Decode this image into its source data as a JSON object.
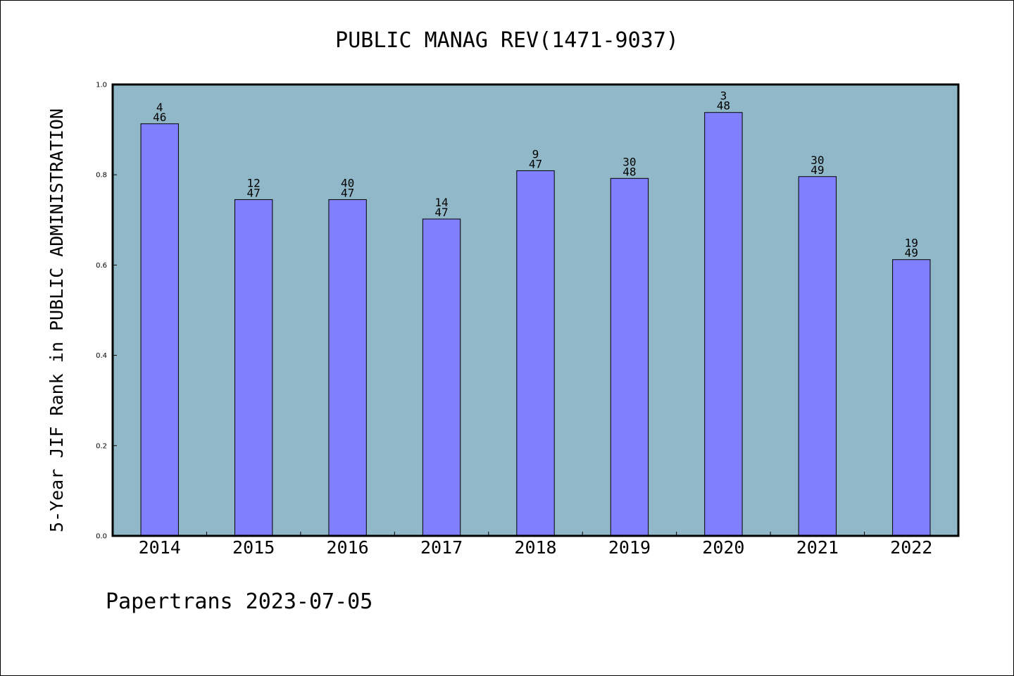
{
  "chart_data": {
    "type": "bar",
    "title": "PUBLIC MANAG REV(1471-9037)",
    "xlabel": "",
    "ylabel": "5-Year JIF Rank in PUBLIC ADMINISTRATION",
    "categories": [
      "2014",
      "2015",
      "2016",
      "2017",
      "2018",
      "2019",
      "2020",
      "2021",
      "2022"
    ],
    "values": [
      0.913,
      0.745,
      0.745,
      0.702,
      0.809,
      0.792,
      0.938,
      0.796,
      0.612
    ],
    "rank": [
      "4",
      "12",
      "40",
      "14",
      "9",
      "30",
      "3",
      "30",
      "19"
    ],
    "total": [
      "46",
      "47",
      "47",
      "47",
      "47",
      "48",
      "48",
      "49",
      "49"
    ],
    "ylim": [
      0,
      1.0
    ],
    "yticks": [
      "0.0",
      "0.2",
      "0.4",
      "0.6",
      "0.8",
      "1.0"
    ],
    "grid": false,
    "legend": "none",
    "colors": {
      "plot_background": "#90b8c8",
      "bar_fill": "#8080ff",
      "bar_edge": "#000000"
    }
  },
  "footer": "Papertrans 2023-07-05"
}
